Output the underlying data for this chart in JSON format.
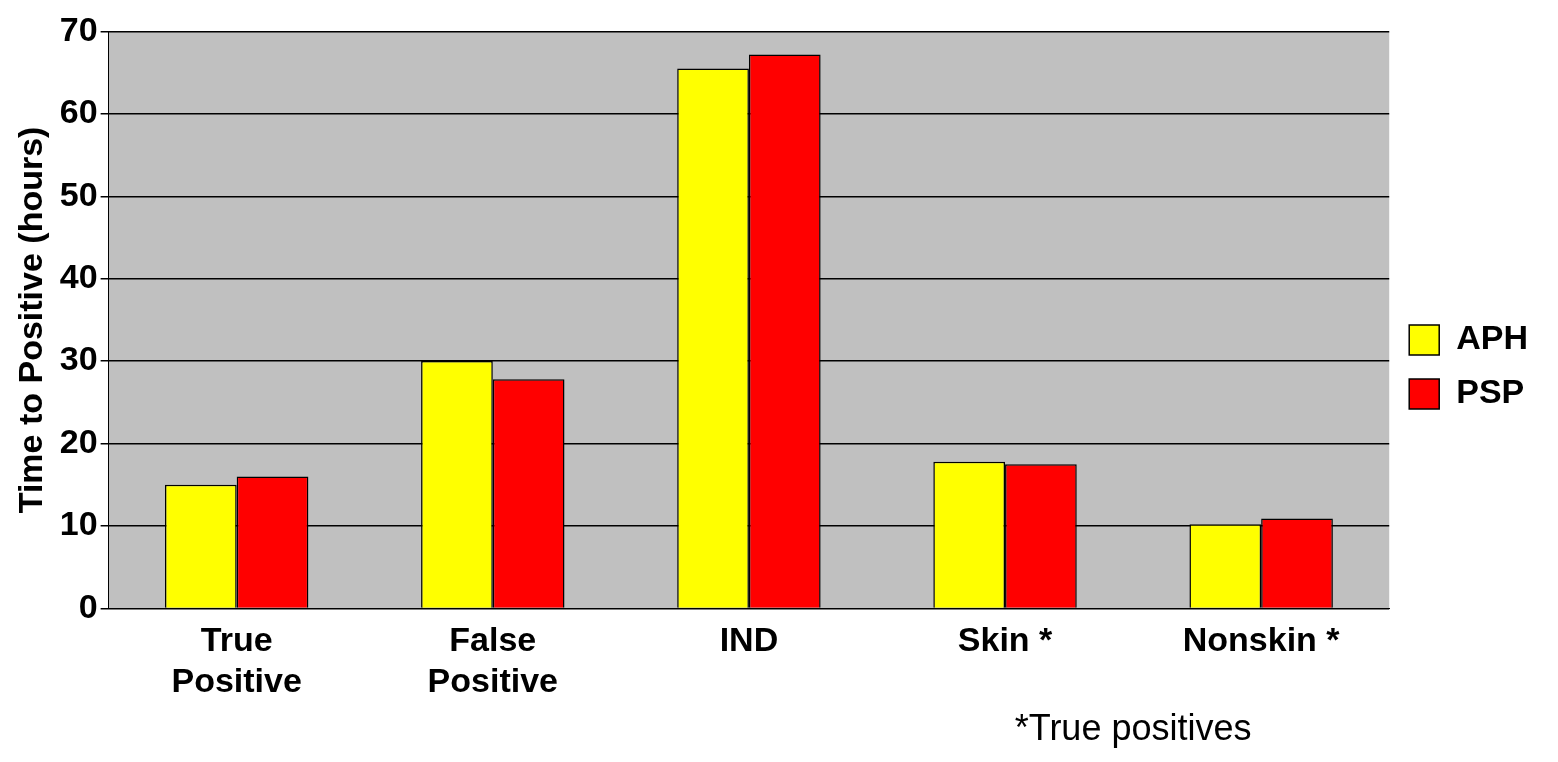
{
  "chart_data": {
    "type": "bar",
    "ylabel": "Time to Positive (hours)",
    "categories": [
      "True\nPositive",
      "False\nPositive",
      "IND",
      "Skin *",
      "Nonskin *"
    ],
    "series": [
      {
        "name": "APH",
        "color": "#ffff00",
        "values": [
          15,
          30,
          65.5,
          17.8,
          10.2
        ]
      },
      {
        "name": "PSP",
        "color": "#ff0000",
        "values": [
          16,
          27.8,
          67.2,
          17.5,
          10.9
        ]
      }
    ],
    "ylim": [
      0,
      70
    ],
    "yticks": [
      0,
      10,
      20,
      30,
      40,
      50,
      60,
      70
    ],
    "grid": "y",
    "legend": "right",
    "annotations": [
      "*True positives"
    ]
  }
}
